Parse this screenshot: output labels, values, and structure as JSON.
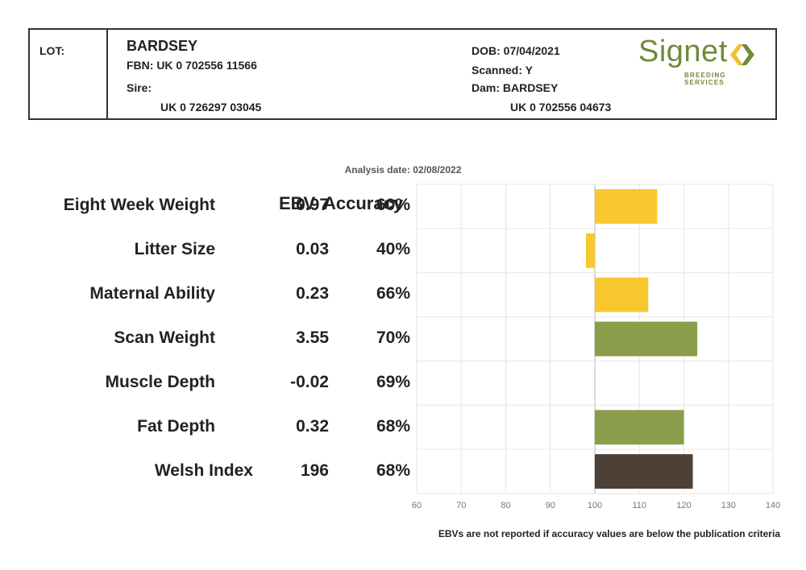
{
  "header": {
    "lot_label": "LOT:",
    "name": "BARDSEY",
    "fbn": "FBN: UK 0 702556 11566",
    "sire_label": "Sire:",
    "sire_id": "UK 0 726297 03045",
    "dob": "DOB: 07/04/2021",
    "scanned": "Scanned: Y",
    "dam": "Dam: BARDSEY",
    "dam_id": "UK 0 702556 04673"
  },
  "logo": {
    "text": "Signet",
    "subtext": "BREEDING SERVICES",
    "colors": {
      "text": "#6f8a3a",
      "mark_left": "#f2c12e",
      "mark_right": "#6f8a3a"
    }
  },
  "analysis_date": "Analysis date: 02/08/2022",
  "columns": {
    "ebv": "EBV",
    "accuracy": "Accuracy"
  },
  "footnote": "EBVs are not reported if accuracy values are below the publication criteria",
  "chart_data": {
    "type": "bar",
    "orientation": "horizontal",
    "categories": [
      "Eight Week Weight",
      "Litter Size",
      "Maternal Ability",
      "Scan Weight",
      "Muscle Depth",
      "Fat Depth",
      "Welsh Index"
    ],
    "ebv": [
      "0.97",
      "0.03",
      "0.23",
      "3.55",
      "-0.02",
      "0.32",
      "196"
    ],
    "accuracy": [
      "60%",
      "40%",
      "66%",
      "70%",
      "69%",
      "68%",
      "68%"
    ],
    "values": [
      114,
      98,
      112,
      123,
      100,
      120,
      122
    ],
    "baseline": 100,
    "bar_colors": [
      "#f7c830",
      "#f7c830",
      "#f7c830",
      "#8a9d4a",
      "#8a9d4a",
      "#8a9d4a",
      "#4e4036"
    ],
    "xlim": [
      60,
      140
    ],
    "xticks": [
      60,
      70,
      80,
      90,
      100,
      110,
      120,
      130,
      140
    ],
    "grid": true
  }
}
